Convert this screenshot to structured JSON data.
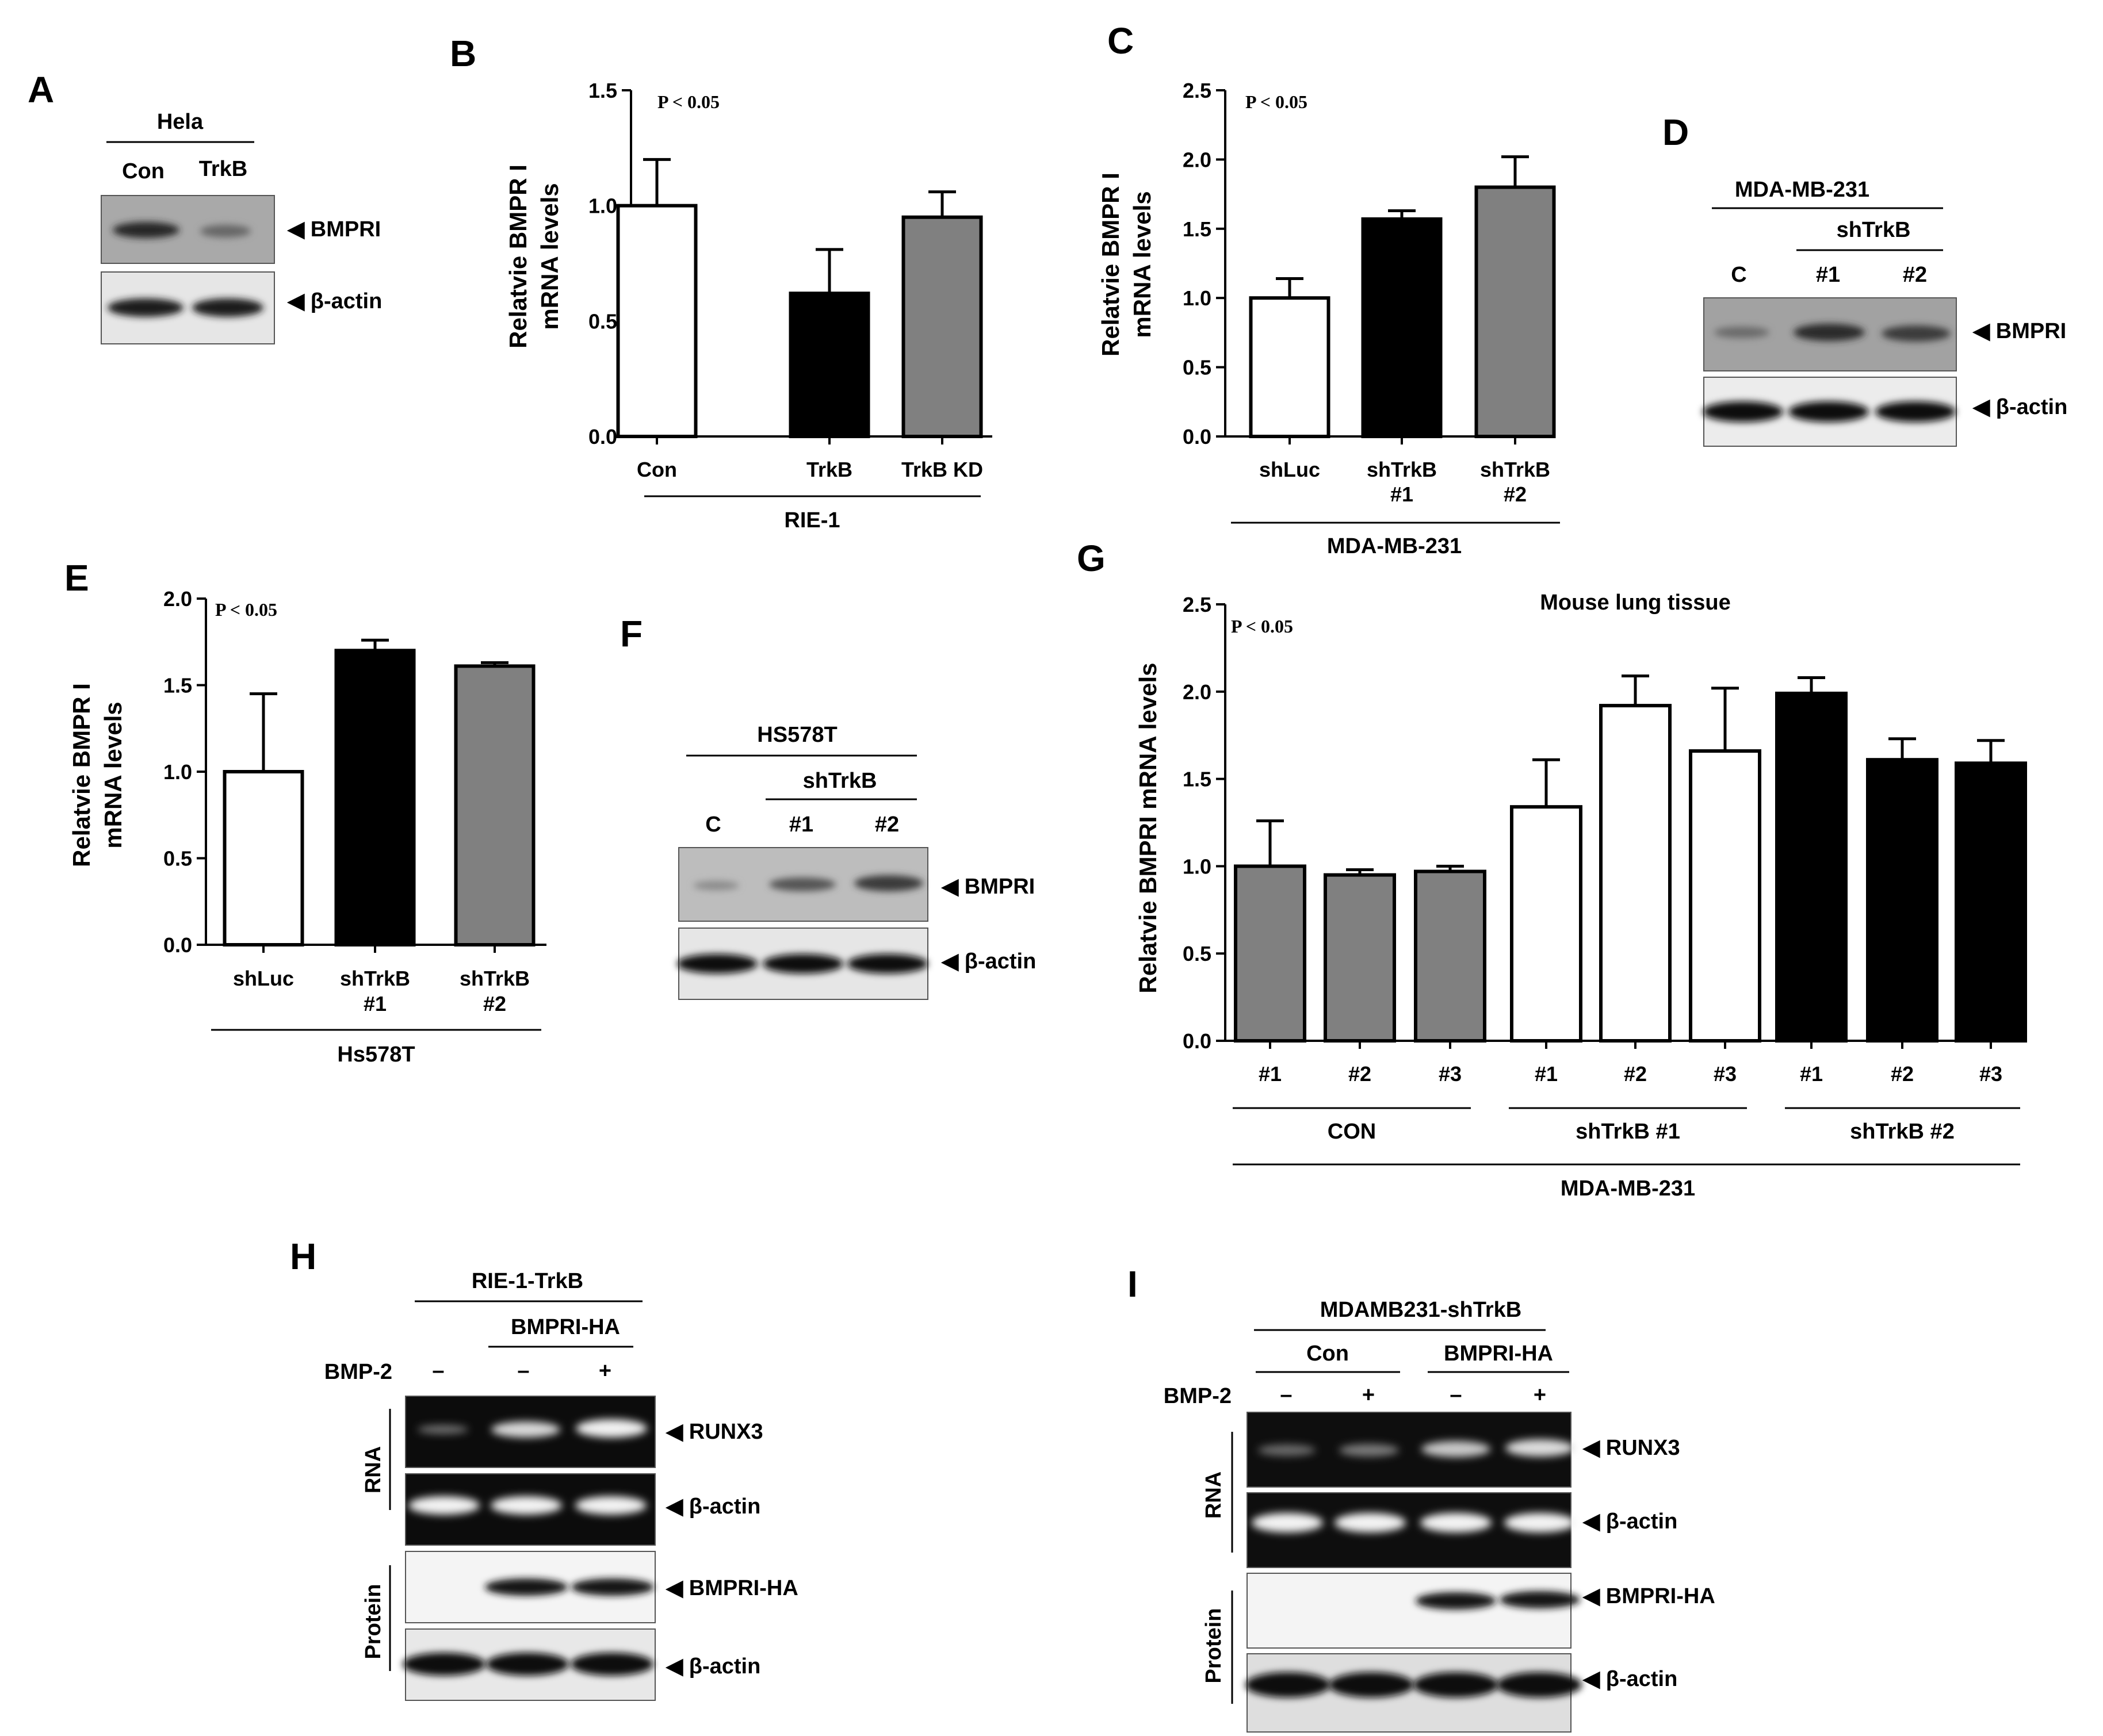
{
  "panels": {
    "A": {
      "label": "A",
      "cell_line": "Hela",
      "lanes": [
        "Con",
        "TrkB"
      ],
      "bands": [
        "BMPRI",
        "β-actin"
      ]
    },
    "B": {
      "label": "B",
      "ylabel_line1": "Relatvie BMPR I",
      "ylabel_line2": "mRNA levels",
      "pvalue": "P < 0.05",
      "group_label": "RIE-1"
    },
    "C": {
      "label": "C",
      "ylabel_line1": "Relatvie BMPR I",
      "ylabel_line2": "mRNA levels",
      "pvalue": "P < 0.05",
      "group_label": "MDA-MB-231"
    },
    "D": {
      "label": "D",
      "cell_line": "MDA-MB-231",
      "treatment": "shTrkB",
      "lanes": [
        "C",
        "#1",
        "#2"
      ],
      "bands": [
        "BMPRI",
        "β-actin"
      ]
    },
    "E": {
      "label": "E",
      "ylabel_line1": "Relatvie BMPR I",
      "ylabel_line2": "mRNA levels",
      "pvalue": "P < 0.05",
      "group_label": "Hs578T"
    },
    "F": {
      "label": "F",
      "cell_line": "HS578T",
      "treatment": "shTrkB",
      "lanes": [
        "C",
        "#1",
        "#2"
      ],
      "bands": [
        "BMPRI",
        "β-actin"
      ]
    },
    "G": {
      "label": "G",
      "ylabel": "Relatvie BMPRI  mRNA levels",
      "title": "Mouse lung tissue",
      "pvalue": "P < 0.05",
      "groups": [
        "CON",
        "shTrkB #1",
        "shTrkB #2"
      ],
      "outer_label": "MDA-MB-231"
    },
    "H": {
      "label": "H",
      "cell_line": "RIE-1-TrkB",
      "construct": "BMPRI-HA",
      "treatment": "BMP-2",
      "signs": [
        "–",
        "–",
        "+"
      ],
      "rna_label": "RNA",
      "protein_label": "Protein",
      "bands": [
        "RUNX3",
        "β-actin",
        "BMPRI-HA",
        "β-actin"
      ]
    },
    "I": {
      "label": "I",
      "cell_line": "MDAMB231-shTrkB",
      "groups": [
        "Con",
        "BMPRI-HA"
      ],
      "treatment": "BMP-2",
      "signs": [
        "–",
        "+",
        "–",
        "+"
      ],
      "rna_label": "RNA",
      "protein_label": "Protein",
      "bands": [
        "RUNX3",
        "β-actin",
        "BMPRI-HA",
        "β-actin"
      ]
    }
  },
  "chart_data": [
    {
      "panel": "B",
      "type": "bar",
      "categories": [
        "Con",
        "TrkB",
        "TrkB KD"
      ],
      "values": [
        1.0,
        0.62,
        0.95
      ],
      "errors": [
        0.2,
        0.19,
        0.11
      ],
      "colors": [
        "#ffffff",
        "#000000",
        "#808080"
      ],
      "ylim": [
        0,
        1.5
      ],
      "yticks": [
        "0.0",
        "0.5",
        "1.0",
        "1.5"
      ]
    },
    {
      "panel": "C",
      "type": "bar",
      "categories": [
        "shLuc",
        "shTrkB #1",
        "shTrkB #2"
      ],
      "values": [
        1.0,
        1.57,
        1.8
      ],
      "errors": [
        0.14,
        0.06,
        0.22
      ],
      "colors": [
        "#ffffff",
        "#000000",
        "#808080"
      ],
      "ylim": [
        0,
        2.5
      ],
      "yticks": [
        "0.0",
        "0.5",
        "1.0",
        "1.5",
        "2.0",
        "2.5"
      ]
    },
    {
      "panel": "E",
      "type": "bar",
      "categories": [
        "shLuc",
        "shTrkB #1",
        "shTrkB #2"
      ],
      "values": [
        1.0,
        1.7,
        1.61
      ],
      "errors": [
        0.45,
        0.06,
        0.02
      ],
      "colors": [
        "#ffffff",
        "#000000",
        "#808080"
      ],
      "ylim": [
        0,
        2.0
      ],
      "yticks": [
        "0.0",
        "0.5",
        "1.0",
        "1.5",
        "2.0"
      ]
    },
    {
      "panel": "G",
      "type": "bar",
      "categories": [
        "#1",
        "#2",
        "#3",
        "#1",
        "#2",
        "#3",
        "#1",
        "#2",
        "#3"
      ],
      "values": [
        1.0,
        0.95,
        0.97,
        1.34,
        1.92,
        1.66,
        1.99,
        1.61,
        1.59
      ],
      "errors": [
        0.26,
        0.03,
        0.03,
        0.27,
        0.17,
        0.36,
        0.09,
        0.12,
        0.13
      ],
      "colors": [
        "#808080",
        "#808080",
        "#808080",
        "#ffffff",
        "#ffffff",
        "#ffffff",
        "#000000",
        "#000000",
        "#000000"
      ],
      "ylim": [
        0,
        2.5
      ],
      "yticks": [
        "0.0",
        "0.5",
        "1.0",
        "1.5",
        "2.0",
        "2.5"
      ]
    }
  ]
}
